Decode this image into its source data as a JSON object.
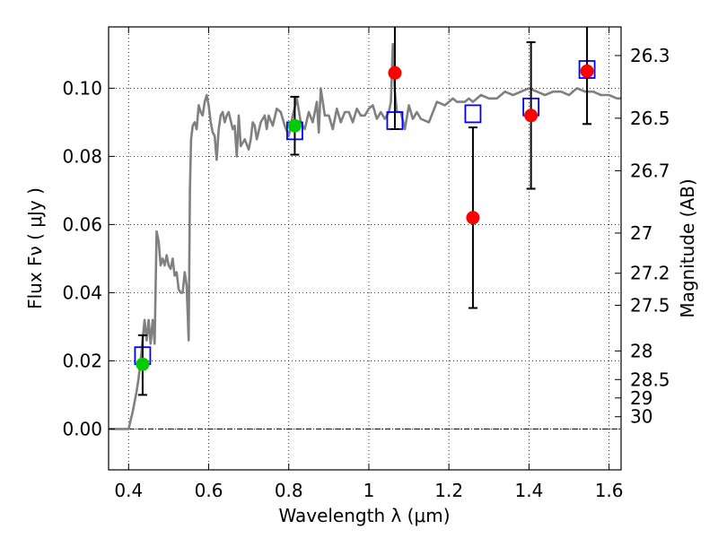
{
  "chart_data": {
    "type": "scatter",
    "title": "",
    "xlabel": "Wavelength  λ (μm)",
    "ylabel": "Flux  Fν ( μJy )",
    "y2label": "Magnitude (AB)",
    "xlim": [
      0.35,
      1.63
    ],
    "ylim": [
      -0.012,
      0.118
    ],
    "grid": true,
    "xticks": [
      0.4,
      0.6,
      0.8,
      1.0,
      1.2,
      1.4,
      1.6
    ],
    "xtick_labels": [
      "0.4",
      "0.6",
      "0.8",
      "1",
      "1.2",
      "1.4",
      "1.6"
    ],
    "yticks": [
      0.0,
      0.02,
      0.04,
      0.06,
      0.08,
      0.1
    ],
    "ytick_labels": [
      "0.00",
      "0.02",
      "0.04",
      "0.06",
      "0.08",
      "0.10"
    ],
    "y2ticks": [
      {
        "flux": 0.1096,
        "label": "26.3"
      },
      {
        "flux": 0.0912,
        "label": "26.5"
      },
      {
        "flux": 0.0758,
        "label": "26.7"
      },
      {
        "flux": 0.0575,
        "label": "27"
      },
      {
        "flux": 0.0457,
        "label": "27.2"
      },
      {
        "flux": 0.0363,
        "label": "27.5"
      },
      {
        "flux": 0.0229,
        "label": "28"
      },
      {
        "flux": 0.0145,
        "label": "28.5"
      },
      {
        "flux": 0.0091,
        "label": "29"
      },
      {
        "flux": 0.0036,
        "label": "30"
      }
    ],
    "series": [
      {
        "kind": "line",
        "color": "#808080",
        "x": [
          0.35,
          0.36,
          0.38,
          0.4,
          0.41,
          0.415,
          0.42,
          0.425,
          0.43,
          0.435,
          0.44,
          0.445,
          0.45,
          0.455,
          0.46,
          0.465,
          0.47,
          0.475,
          0.48,
          0.485,
          0.49,
          0.495,
          0.5,
          0.505,
          0.51,
          0.515,
          0.52,
          0.525,
          0.53,
          0.535,
          0.54,
          0.545,
          0.55,
          0.553,
          0.556,
          0.56,
          0.565,
          0.57,
          0.575,
          0.58,
          0.585,
          0.59,
          0.595,
          0.6,
          0.605,
          0.61,
          0.615,
          0.62,
          0.625,
          0.63,
          0.635,
          0.64,
          0.645,
          0.65,
          0.66,
          0.665,
          0.67,
          0.675,
          0.68,
          0.69,
          0.7,
          0.705,
          0.71,
          0.715,
          0.72,
          0.73,
          0.74,
          0.745,
          0.75,
          0.76,
          0.77,
          0.78,
          0.79,
          0.8,
          0.81,
          0.82,
          0.83,
          0.84,
          0.85,
          0.86,
          0.87,
          0.875,
          0.88,
          0.89,
          0.9,
          0.91,
          0.92,
          0.93,
          0.94,
          0.95,
          0.96,
          0.97,
          0.98,
          0.99,
          1.0,
          1.01,
          1.02,
          1.03,
          1.04,
          1.05,
          1.055,
          1.06,
          1.065,
          1.07,
          1.08,
          1.09,
          1.1,
          1.11,
          1.12,
          1.13,
          1.15,
          1.17,
          1.19,
          1.2,
          1.21,
          1.22,
          1.23,
          1.24,
          1.25,
          1.26,
          1.28,
          1.3,
          1.32,
          1.34,
          1.36,
          1.38,
          1.4,
          1.42,
          1.44,
          1.46,
          1.48,
          1.5,
          1.52,
          1.54,
          1.56,
          1.58,
          1.6,
          1.61,
          1.62,
          1.63
        ],
        "y": [
          0.0,
          0.0,
          0.0,
          0.0,
          0.005,
          0.008,
          0.011,
          0.015,
          0.02,
          0.026,
          0.032,
          0.026,
          0.032,
          0.025,
          0.032,
          0.025,
          0.058,
          0.055,
          0.048,
          0.05,
          0.048,
          0.051,
          0.048,
          0.047,
          0.05,
          0.045,
          0.046,
          0.041,
          0.04,
          0.04,
          0.046,
          0.042,
          0.026,
          0.07,
          0.085,
          0.089,
          0.09,
          0.088,
          0.095,
          0.093,
          0.092,
          0.096,
          0.098,
          0.095,
          0.09,
          0.087,
          0.086,
          0.079,
          0.088,
          0.092,
          0.093,
          0.09,
          0.092,
          0.093,
          0.088,
          0.089,
          0.08,
          0.092,
          0.083,
          0.085,
          0.082,
          0.085,
          0.09,
          0.089,
          0.085,
          0.09,
          0.092,
          0.088,
          0.092,
          0.089,
          0.094,
          0.093,
          0.089,
          0.086,
          0.092,
          0.097,
          0.09,
          0.088,
          0.093,
          0.09,
          0.096,
          0.087,
          0.1,
          0.092,
          0.092,
          0.088,
          0.094,
          0.09,
          0.093,
          0.093,
          0.09,
          0.094,
          0.092,
          0.092,
          0.094,
          0.095,
          0.091,
          0.093,
          0.091,
          0.093,
          0.096,
          0.113,
          0.099,
          0.093,
          0.093,
          0.088,
          0.095,
          0.091,
          0.093,
          0.091,
          0.09,
          0.096,
          0.095,
          0.096,
          0.097,
          0.096,
          0.096,
          0.096,
          0.097,
          0.096,
          0.098,
          0.097,
          0.097,
          0.099,
          0.098,
          0.099,
          0.1,
          0.099,
          0.098,
          0.099,
          0.099,
          0.098,
          0.1,
          0.099,
          0.099,
          0.098,
          0.098,
          0.0975,
          0.097,
          0.097
        ]
      },
      {
        "kind": "points",
        "marker": "open-square",
        "color": "#0000ff",
        "x": [
          0.435,
          0.815,
          1.065,
          1.26,
          1.405,
          1.545
        ],
        "y": [
          0.0215,
          0.0875,
          0.0905,
          0.0925,
          0.0945,
          0.1055
        ]
      },
      {
        "kind": "points",
        "marker": "filled-circle",
        "color": "#00cc00",
        "x": [
          0.435,
          0.815
        ],
        "y": [
          0.019,
          0.089
        ],
        "err_low": [
          0.01,
          0.0805
        ],
        "err_high": [
          0.0275,
          0.0975
        ]
      },
      {
        "kind": "points",
        "marker": "filled-circle",
        "color": "#ff0000",
        "x": [
          1.065,
          1.26,
          1.405,
          1.545
        ],
        "y": [
          0.1045,
          0.062,
          0.092,
          0.105
        ],
        "err_low": [
          0.088,
          0.0355,
          0.0705,
          0.0895
        ],
        "err_high": [
          0.12,
          0.0885,
          0.1135,
          0.12
        ]
      }
    ]
  }
}
